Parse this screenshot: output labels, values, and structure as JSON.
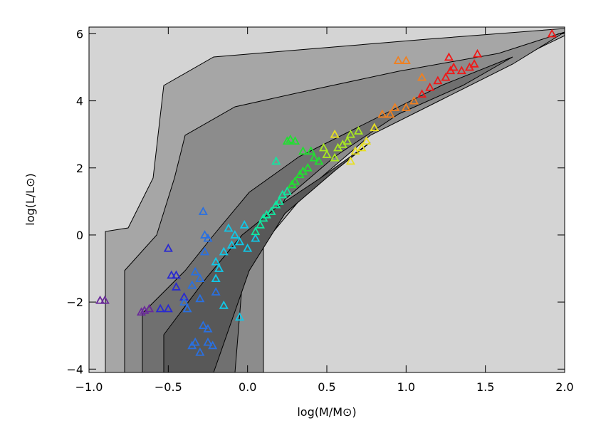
{
  "chart_data": {
    "type": "scatter",
    "x_label": "log(M/M⊙)",
    "y_label": "log(L/L⊙)",
    "xlim": [
      -1.0,
      2.0
    ],
    "ylim": [
      -4.1,
      6.2
    ],
    "xticks": [
      {
        "value": -1.0,
        "label": "−1.0"
      },
      {
        "value": -0.5,
        "label": "−0.5"
      },
      {
        "value": 0.0,
        "label": "0.0"
      },
      {
        "value": 0.5,
        "label": "0.5"
      },
      {
        "value": 1.0,
        "label": "1.0"
      },
      {
        "value": 1.5,
        "label": "1.5"
      },
      {
        "value": 2.0,
        "label": "2.0"
      }
    ],
    "yticks": [
      {
        "value": -4,
        "label": "−4"
      },
      {
        "value": -2,
        "label": "−2"
      },
      0,
      2,
      4,
      6
    ],
    "marker": "triangle",
    "series": [
      {
        "color": "#6a2a9a",
        "x": [
          -0.93,
          -0.9,
          -0.67,
          -0.65,
          -0.62
        ],
        "y": [
          -1.95,
          -1.95,
          -2.3,
          -2.25,
          -2.2
        ]
      },
      {
        "color": "#2a2ad0",
        "x": [
          -0.55,
          -0.5,
          -0.48,
          -0.45,
          -0.45,
          -0.4,
          -0.5
        ],
        "y": [
          -2.2,
          -2.2,
          -1.2,
          -1.2,
          -1.55,
          -1.85,
          -0.4
        ]
      },
      {
        "color": "#2a70e0",
        "x": [
          -0.4,
          -0.38,
          -0.35,
          -0.33,
          -0.3,
          -0.28,
          -0.27,
          -0.25,
          -0.33,
          -0.35,
          -0.3,
          -0.28,
          -0.25,
          -0.25,
          -0.22,
          -0.2,
          -0.3,
          -0.27
        ],
        "y": [
          -2.0,
          -2.2,
          -1.5,
          -1.1,
          -1.3,
          0.7,
          0.0,
          -0.1,
          -3.2,
          -3.3,
          -3.5,
          -2.7,
          -3.2,
          -2.8,
          -3.3,
          -1.7,
          -1.9,
          -0.5
        ]
      },
      {
        "color": "#10c8e8",
        "x": [
          -0.2,
          -0.18,
          -0.15,
          -0.12,
          -0.1,
          -0.08,
          -0.05,
          -0.05,
          -0.15,
          -0.2,
          -0.02,
          0.0,
          0.05
        ],
        "y": [
          -0.8,
          -1.0,
          -0.5,
          0.2,
          -0.3,
          0.0,
          -0.2,
          -2.45,
          -2.1,
          -1.3,
          0.3,
          -0.4,
          -0.1
        ]
      },
      {
        "color": "#10e8a0",
        "x": [
          0.05,
          0.08,
          0.1,
          0.12,
          0.15,
          0.18,
          0.2,
          0.22,
          0.25,
          0.18
        ],
        "y": [
          0.1,
          0.3,
          0.5,
          0.6,
          0.7,
          0.9,
          1.0,
          1.2,
          1.3,
          2.2
        ]
      },
      {
        "color": "#20e030",
        "x": [
          0.28,
          0.3,
          0.33,
          0.35,
          0.38,
          0.25,
          0.27,
          0.3,
          0.35,
          0.4,
          0.42,
          0.45
        ],
        "y": [
          1.5,
          1.6,
          1.8,
          1.9,
          2.0,
          2.8,
          2.85,
          2.8,
          2.5,
          2.5,
          2.3,
          2.2
        ]
      },
      {
        "color": "#a8e820",
        "x": [
          0.48,
          0.5,
          0.55,
          0.57,
          0.6,
          0.63,
          0.65,
          0.7
        ],
        "y": [
          2.6,
          2.4,
          2.3,
          2.6,
          2.7,
          2.8,
          3.0,
          3.1
        ]
      },
      {
        "color": "#e8e020",
        "x": [
          0.65,
          0.68,
          0.72,
          0.75,
          0.8,
          0.55
        ],
        "y": [
          2.2,
          2.5,
          2.6,
          2.8,
          3.2,
          3.0
        ]
      },
      {
        "color": "#f08020",
        "x": [
          0.85,
          0.9,
          0.93,
          1.0,
          1.05,
          1.0,
          1.1,
          0.95
        ],
        "y": [
          3.6,
          3.6,
          3.8,
          3.8,
          4.0,
          5.2,
          4.7,
          5.2
        ]
      },
      {
        "color": "#f01818",
        "x": [
          1.1,
          1.15,
          1.2,
          1.25,
          1.28,
          1.3,
          1.35,
          1.4,
          1.43,
          1.45,
          1.27,
          1.92
        ],
        "y": [
          4.2,
          4.4,
          4.6,
          4.7,
          4.9,
          5.0,
          4.9,
          5.0,
          5.1,
          5.4,
          5.3,
          6.0
        ]
      }
    ]
  }
}
